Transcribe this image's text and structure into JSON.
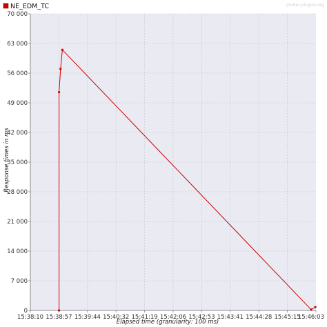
{
  "legend": {
    "series_name": "NE_EDM_TC"
  },
  "watermark": "jmeter-plugins.org",
  "colors": {
    "series": "#cc0000",
    "plot_bg": "#eaeaf2",
    "grid": "#c4c4cc",
    "axis": "#888888"
  },
  "chart_data": {
    "type": "line",
    "xlabel": "Elapsed time (granularity: 100 ms)",
    "ylabel": "Response times in ms",
    "x_ticks": [
      "15:38:10",
      "15:38:57",
      "15:39:44",
      "15:40:32",
      "15:41:19",
      "15:42:06",
      "15:42:53",
      "15:43:41",
      "15:44:28",
      "15:45:15",
      "15:46:03"
    ],
    "y_ticks": [
      "0",
      "7 000",
      "14 000",
      "21 000",
      "28 000",
      "35 000",
      "42 000",
      "49 000",
      "56 000",
      "63 000",
      "70 000"
    ],
    "ylim": [
      0,
      70000
    ],
    "xlim": [
      "15:38:10",
      "15:46:03"
    ],
    "grid": true,
    "legend_position": "top-left",
    "series": [
      {
        "name": "NE_EDM_TC",
        "points": [
          {
            "x": "15:38:57.5",
            "y": 0
          },
          {
            "x": "15:38:57.5",
            "y": 51500
          },
          {
            "x": "15:39:00",
            "y": 57000
          },
          {
            "x": "15:39:03",
            "y": 61500
          },
          {
            "x": "15:45:55",
            "y": 200
          },
          {
            "x": "15:46:02",
            "y": 800
          }
        ]
      }
    ]
  }
}
